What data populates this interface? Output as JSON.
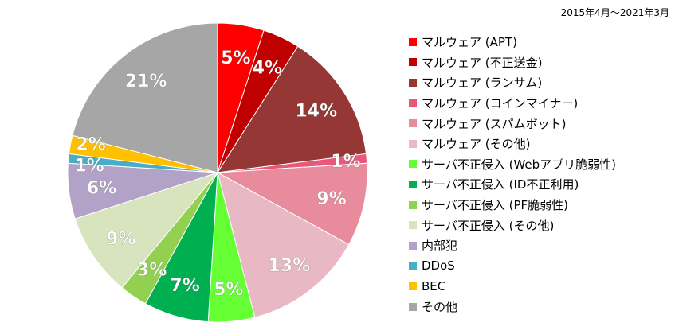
{
  "chart_data": {
    "type": "pie",
    "title": "",
    "subtitle": "2015年4月～2021年3月",
    "legend_position": "right",
    "slices": [
      {
        "label": "マルウェア (APT)",
        "value": 5,
        "display": "5%",
        "color": "#FF0000"
      },
      {
        "label": "マルウェア (不正送金)",
        "value": 4,
        "display": "4%",
        "color": "#C00000"
      },
      {
        "label": "マルウェア (ランサム)",
        "value": 14,
        "display": "14%",
        "color": "#953735"
      },
      {
        "label": "マルウェア (コインマイナー)",
        "value": 1,
        "display": "1%",
        "color": "#E9577A"
      },
      {
        "label": "マルウェア (スパムボット)",
        "value": 9,
        "display": "9%",
        "color": "#E88B9C"
      },
      {
        "label": "マルウェア (その他)",
        "value": 13,
        "display": "13%",
        "color": "#E8B8C4"
      },
      {
        "label": "サーバ不正侵入 (Webアプリ脆弱性)",
        "value": 5,
        "display": "5%",
        "color": "#66FF33"
      },
      {
        "label": "サーバ不正侵入 (ID不正利用)",
        "value": 7,
        "display": "7%",
        "color": "#00B050"
      },
      {
        "label": "サーバ不正侵入 (PF脆弱性)",
        "value": 3,
        "display": "3%",
        "color": "#92D050"
      },
      {
        "label": "サーバ不正侵入 (その他)",
        "value": 9,
        "display": "9%",
        "color": "#D7E4BD"
      },
      {
        "label": "内部犯",
        "value": 6,
        "display": "6%",
        "color": "#B3A2C7"
      },
      {
        "label": "DDoS",
        "value": 1,
        "display": "1%",
        "color": "#4BACC6"
      },
      {
        "label": "BEC",
        "value": 2,
        "display": "2%",
        "color": "#FFC000"
      },
      {
        "label": "その他",
        "value": 21,
        "display": "21%",
        "color": "#A6A6A6"
      }
    ]
  }
}
